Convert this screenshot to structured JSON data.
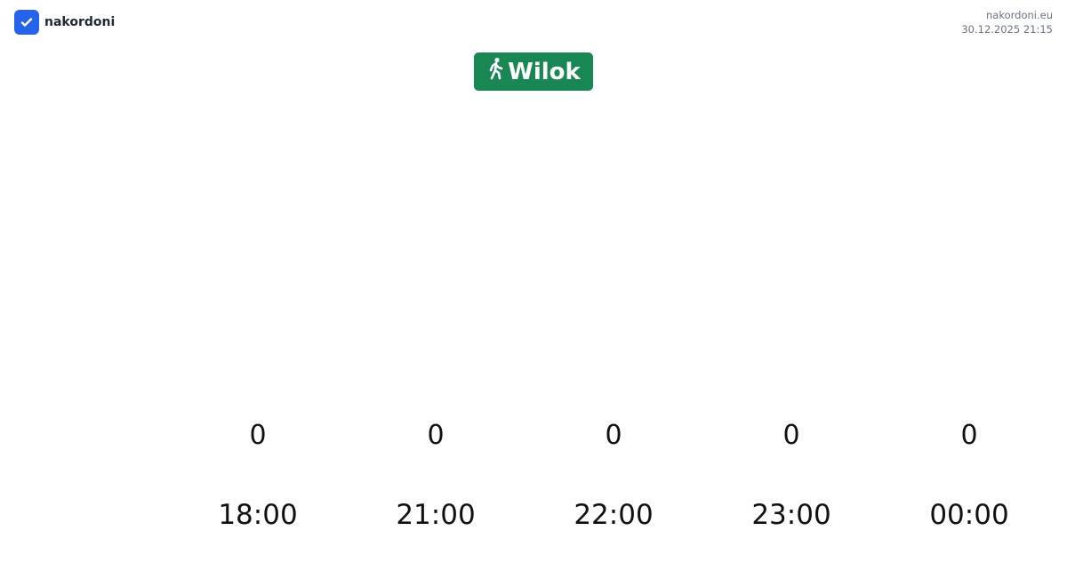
{
  "brand": {
    "name": "nakordoni",
    "color": "#2563eb",
    "icon": "check-icon"
  },
  "meta": {
    "site": "nakordoni.eu",
    "datetime": "30.12.2025 21:15"
  },
  "badge": {
    "label": "Wilok",
    "icon": "pedestrian-walking-icon",
    "color": "#198754"
  },
  "slots": [
    {
      "count": "0",
      "time": "18:00"
    },
    {
      "count": "0",
      "time": "21:00"
    },
    {
      "count": "0",
      "time": "22:00"
    },
    {
      "count": "0",
      "time": "23:00"
    },
    {
      "count": "0",
      "time": "00:00"
    }
  ]
}
